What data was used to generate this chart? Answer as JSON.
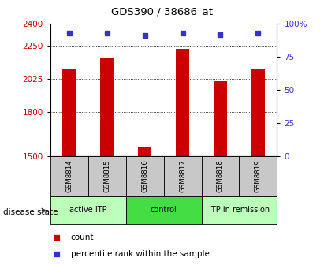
{
  "title": "GDS390 / 38686_at",
  "samples": [
    "GSM8814",
    "GSM8815",
    "GSM8816",
    "GSM8817",
    "GSM8818",
    "GSM8819"
  ],
  "counts": [
    2090,
    2170,
    1560,
    2230,
    2010,
    2090
  ],
  "percentile_ranks": [
    93,
    93,
    91,
    93,
    92,
    93
  ],
  "ylim_left": [
    1500,
    2400
  ],
  "ylim_right": [
    0,
    100
  ],
  "yticks_left": [
    1500,
    1800,
    2025,
    2250,
    2400
  ],
  "ytick_labels_left": [
    "1500",
    "1800",
    "2025",
    "2250",
    "2400"
  ],
  "yticks_right": [
    0,
    25,
    50,
    75,
    100
  ],
  "ytick_labels_right": [
    "0",
    "25",
    "50",
    "75",
    "100%"
  ],
  "bar_color": "#cc0000",
  "dot_color": "#3333cc",
  "groups": [
    {
      "label": "active ITP",
      "span": [
        0,
        2
      ],
      "color": "#bbffbb"
    },
    {
      "label": "control",
      "span": [
        2,
        4
      ],
      "color": "#44dd44"
    },
    {
      "label": "ITP in remission",
      "span": [
        4,
        6
      ],
      "color": "#bbffbb"
    }
  ],
  "disease_state_label": "disease state",
  "legend_count_label": "count",
  "legend_percentile_label": "percentile rank within the sample",
  "grid_color": "#000000",
  "tick_label_color_left": "#cc0000",
  "tick_label_color_right": "#3333cc",
  "sample_box_color": "#c8c8c8",
  "bar_width": 0.35
}
